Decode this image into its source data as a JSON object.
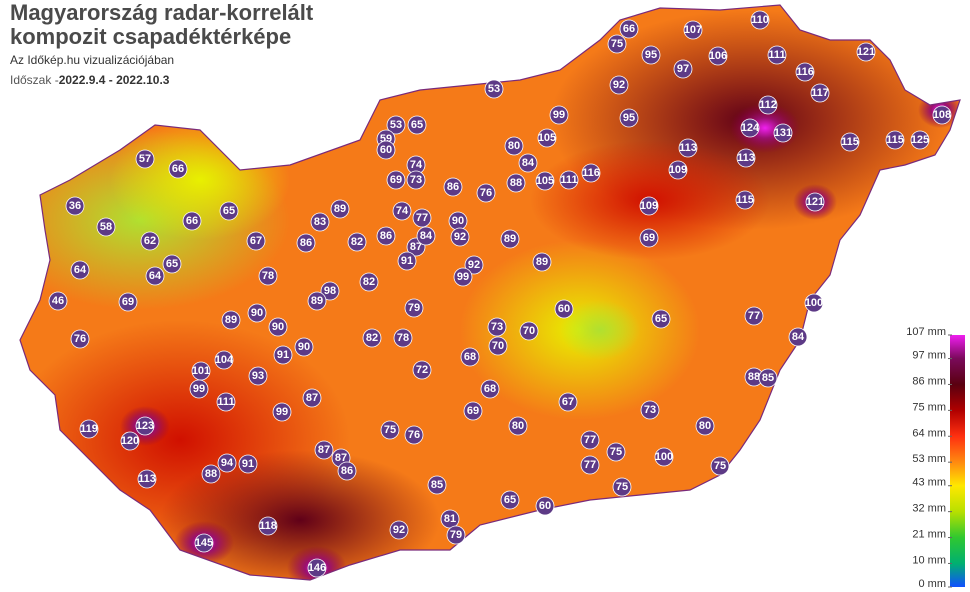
{
  "header": {
    "title_lines": [
      "Magyarország radar-korrelált",
      "kompozit csapadéktérképe"
    ],
    "subtitle": "Az Időkép.hu vizualizációjában",
    "period_label": "Időszak -",
    "period": "2022.9.4 - 2022.10.3"
  },
  "legend": [
    {
      "value": 107,
      "label": "107 mm",
      "color": "#f01ef0"
    },
    {
      "value": 97,
      "label": "97 mm",
      "color": "#7a0a5a"
    },
    {
      "value": 86,
      "label": "86 mm",
      "color": "#5a0010"
    },
    {
      "value": 75,
      "label": "75 mm",
      "color": "#b00000"
    },
    {
      "value": 64,
      "label": "64 mm",
      "color": "#ff3010"
    },
    {
      "value": 53,
      "label": "53 mm",
      "color": "#ff8a10"
    },
    {
      "value": 43,
      "label": "43 mm",
      "color": "#ffe800"
    },
    {
      "value": 32,
      "label": "32 mm",
      "color": "#b8e000"
    },
    {
      "value": 21,
      "label": "21 mm",
      "color": "#30c830"
    },
    {
      "value": 10,
      "label": "10 mm",
      "color": "#00b070"
    },
    {
      "value": 0,
      "label": "0 mm",
      "color": "#1050ff"
    }
  ],
  "stations": [
    66,
    107,
    110,
    106,
    121,
    75,
    95,
    97,
    111,
    116,
    117,
    92,
    53,
    112,
    108,
    99,
    95,
    124,
    131,
    115,
    115,
    125,
    53,
    65,
    59,
    60,
    105,
    80,
    113,
    113,
    57,
    66,
    74,
    84,
    116,
    109,
    111,
    105,
    88,
    86,
    76,
    69,
    73,
    115,
    121,
    109,
    36,
    66,
    65,
    83,
    89,
    74,
    77,
    90,
    58,
    62,
    67,
    86,
    82,
    86,
    92,
    89,
    87,
    84,
    69,
    64,
    65,
    64,
    78,
    91,
    92,
    99,
    89,
    82,
    98,
    46,
    69,
    89,
    79,
    60,
    100,
    90,
    89,
    90,
    73,
    70,
    65,
    77,
    76,
    82,
    78,
    91,
    90,
    70,
    84,
    104,
    68,
    101,
    72,
    93,
    99,
    88,
    85,
    68,
    111,
    87,
    99,
    67,
    73,
    69,
    119,
    123,
    75,
    76,
    80,
    80,
    120,
    87,
    77,
    75,
    100,
    94,
    91,
    87,
    86,
    77,
    75,
    88,
    113,
    85,
    75,
    65,
    60,
    118,
    92,
    81,
    79,
    145,
    146
  ]
}
